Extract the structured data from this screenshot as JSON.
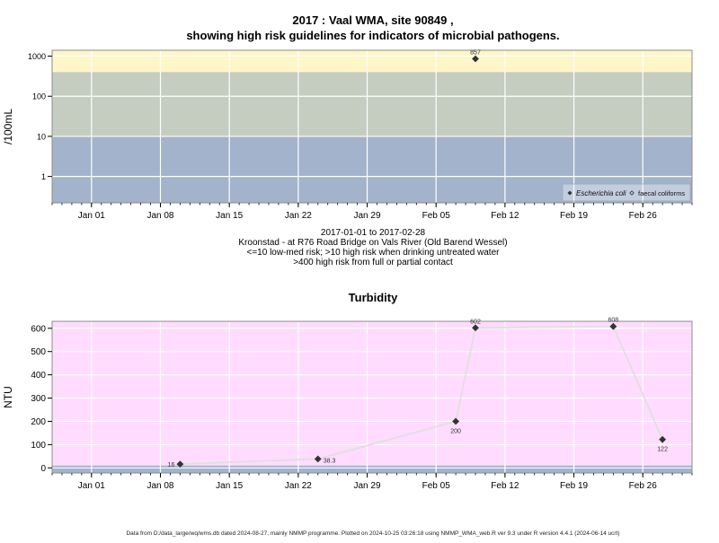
{
  "chart_data": [
    {
      "type": "scatter",
      "title_line1": "2017 : Vaal WMA, site 90849 ,",
      "title_line2": "showing high risk guidelines for indicators of microbial pathogens.",
      "ylabel": "/100mL",
      "y_scale": "log",
      "y_ticks": [
        1,
        10,
        100,
        1000
      ],
      "y_tick_labels": [
        "1",
        "10",
        "100",
        "1000"
      ],
      "xlim": [
        "2016-12-28",
        "2017-03-03"
      ],
      "x_ticks": [
        "2017-01-01",
        "2017-01-08",
        "2017-01-15",
        "2017-01-22",
        "2017-01-29",
        "2017-02-05",
        "2017-02-12",
        "2017-02-19",
        "2017-02-26"
      ],
      "x_tick_labels": [
        "Jan 01",
        "Jan 08",
        "Jan 15",
        "Jan 22",
        "Jan 29",
        "Feb 05",
        "Feb 12",
        "Feb 19",
        "Feb 26"
      ],
      "bands": [
        {
          "from": 400,
          "to": 1400,
          "color": "#fff6c8",
          "label": ">400 high risk from full or partial contact"
        },
        {
          "from": 10,
          "to": 400,
          "color": "#c4cdc0",
          "label": ">10 high risk when drinking untreated water"
        },
        {
          "from": 0.22,
          "to": 10,
          "color": "#a2b3cb",
          "label": "<=10 low-med risk"
        }
      ],
      "series": [
        {
          "name": "Escherichia coli",
          "marker": "filled-diamond",
          "color": "#333333",
          "points": [
            {
              "x": "2017-02-09",
              "y": 857,
              "label": "857"
            }
          ]
        },
        {
          "name": "faecal coliforms",
          "marker": "open-diamond",
          "color": "#333333",
          "points": []
        }
      ],
      "legend_position": "bottom-right",
      "grid": true
    },
    {
      "type": "line",
      "title": "Turbidity",
      "ylabel": "NTU",
      "ylim": [
        -22,
        630
      ],
      "y_ticks": [
        0,
        100,
        200,
        300,
        400,
        500,
        600
      ],
      "y_tick_labels": [
        "0",
        "100",
        "200",
        "300",
        "400",
        "500",
        "600"
      ],
      "xlim": [
        "2016-12-28",
        "2017-03-03"
      ],
      "x_ticks": [
        "2017-01-01",
        "2017-01-08",
        "2017-01-15",
        "2017-01-22",
        "2017-01-29",
        "2017-02-05",
        "2017-02-12",
        "2017-02-19",
        "2017-02-26"
      ],
      "x_tick_labels": [
        "Jan 01",
        "Jan 08",
        "Jan 15",
        "Jan 22",
        "Jan 29",
        "Feb 05",
        "Feb 12",
        "Feb 19",
        "Feb 26"
      ],
      "bands": [
        {
          "from": 10,
          "to": 630,
          "color": "#ffdcff"
        },
        {
          "from": -22,
          "to": 10,
          "color": "#a2b3cb"
        }
      ],
      "series": [
        {
          "name": "",
          "color": "#333333",
          "line_color": "#e0e0e0",
          "points": [
            {
              "x": "2017-01-10",
              "y": 16,
              "label": "16"
            },
            {
              "x": "2017-01-24",
              "y": 38.3,
              "label": "38.3"
            },
            {
              "x": "2017-02-07",
              "y": 200,
              "label": "200"
            },
            {
              "x": "2017-02-09",
              "y": 602,
              "label": "602"
            },
            {
              "x": "2017-02-23",
              "y": 608,
              "label": "608"
            },
            {
              "x": "2017-02-28",
              "y": 122,
              "label": "122"
            }
          ]
        }
      ],
      "grid": true
    }
  ],
  "caption_lines": [
    "2017-01-01 to 2017-02-28",
    "Kroonstad - at R76 Road Bridge on Vals River (Old Barend Wessel)",
    "<=10 low-med risk; >10 high risk when drinking untreated water",
    ">400 high risk from full or partial contact"
  ],
  "footer": "Data from D:/data_large/wq/wms.db dated 2024-08-27, mainly NMMP programme. Plotted on 2024-10-25 03:26:18 using NMMP_WMA_web.R ver 9.3 under R version 4.4.1 (2024-06-14 ucrt)"
}
